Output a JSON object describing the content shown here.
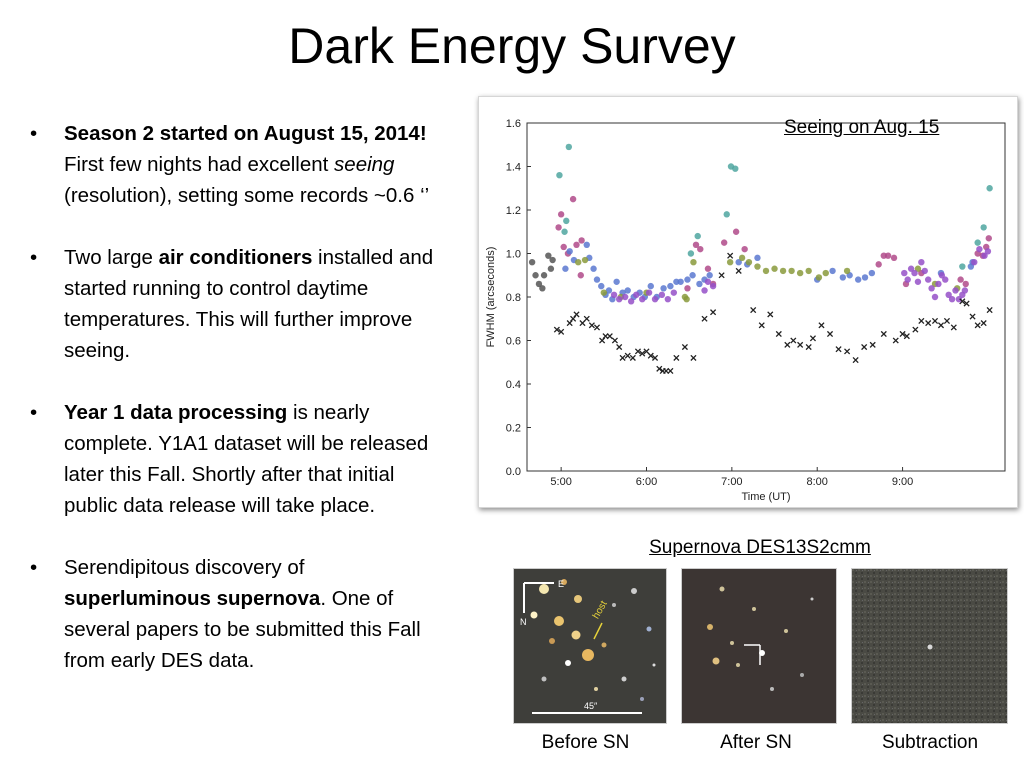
{
  "slide": {
    "title": "Dark Energy Survey",
    "bullets": [
      {
        "segments": [
          {
            "text": "Season 2 started on August 15, 2014!",
            "style": "bold"
          },
          {
            "text": "  First few nights had excellent ",
            "style": "normal"
          },
          {
            "text": "seeing",
            "style": "italic"
          },
          {
            "text": " (resolution), setting some records ~0.6 ‘’",
            "style": "normal"
          }
        ]
      },
      {
        "segments": [
          {
            "text": "Two large ",
            "style": "normal"
          },
          {
            "text": "air conditioners",
            "style": "bold"
          },
          {
            "text": " installed and started running to control daytime temperatures.  This will further improve seeing.",
            "style": "normal"
          }
        ]
      },
      {
        "segments": [
          {
            "text": "Year 1 data processing",
            "style": "bold"
          },
          {
            "text": " is nearly complete.  Y1A1 dataset will be released later this Fall.  Shortly after that initial public data release will take place.",
            "style": "normal"
          }
        ]
      },
      {
        "segments": [
          {
            "text": "Serendipitous discovery of ",
            "style": "normal"
          },
          {
            "text": "superluminous supernova",
            "style": "bold"
          },
          {
            "text": ".  One of several papers to be submitted this Fall from early DES data.",
            "style": "normal"
          }
        ]
      }
    ],
    "chart_caption": "Seeing on Aug. 15",
    "supernova_title": "Supernova DES13S2cmm",
    "panels": [
      {
        "caption": "Before SN",
        "labels": {
          "east": "E",
          "north": "N",
          "host": "host",
          "scale": "45″"
        }
      },
      {
        "caption": "After SN"
      },
      {
        "caption": "Subtraction"
      }
    ]
  },
  "chart_data": {
    "type": "scatter",
    "xlabel": "Time (UT)",
    "ylabel": "FWHM (arcseconds)",
    "xlim": [
      4.6,
      10.2
    ],
    "ylim": [
      0.0,
      1.6
    ],
    "xticks": [
      {
        "v": 5,
        "label": "5:00"
      },
      {
        "v": 6,
        "label": "6:00"
      },
      {
        "v": 7,
        "label": "7:00"
      },
      {
        "v": 8,
        "label": "8:00"
      },
      {
        "v": 9,
        "label": "9:00"
      }
    ],
    "yticks": [
      {
        "v": 0.0,
        "label": "0.0"
      },
      {
        "v": 0.2,
        "label": "0.2"
      },
      {
        "v": 0.4,
        "label": "0.4"
      },
      {
        "v": 0.6,
        "label": "0.6"
      },
      {
        "v": 0.8,
        "label": "0.8"
      },
      {
        "v": 1.0,
        "label": "1.0"
      },
      {
        "v": 1.2,
        "label": "1.2"
      },
      {
        "v": 1.4,
        "label": "1.4"
      },
      {
        "v": 1.6,
        "label": "1.6"
      }
    ],
    "series": [
      {
        "marker": "circle",
        "color": "#555555",
        "points": [
          [
            4.66,
            0.96
          ],
          [
            4.7,
            0.9
          ],
          [
            4.74,
            0.86
          ],
          [
            4.78,
            0.84
          ],
          [
            4.8,
            0.9
          ],
          [
            4.85,
            0.99
          ],
          [
            4.88,
            0.93
          ],
          [
            4.9,
            0.97
          ]
        ]
      },
      {
        "marker": "circle",
        "color": "#4fa6a0",
        "points": [
          [
            4.98,
            1.36
          ],
          [
            5.04,
            1.1
          ],
          [
            5.06,
            1.15
          ],
          [
            5.09,
            1.49
          ],
          [
            6.52,
            1.0
          ],
          [
            6.6,
            1.08
          ],
          [
            6.94,
            1.18
          ],
          [
            6.99,
            1.4
          ],
          [
            7.04,
            1.39
          ],
          [
            9.88,
            1.05
          ],
          [
            9.95,
            1.12
          ],
          [
            10.02,
            1.3
          ],
          [
            9.7,
            0.94
          ]
        ]
      },
      {
        "marker": "circle",
        "color": "#b04a8a",
        "points": [
          [
            4.97,
            1.12
          ],
          [
            5.0,
            1.18
          ],
          [
            5.03,
            1.03
          ],
          [
            5.08,
            1.0
          ],
          [
            5.14,
            1.25
          ],
          [
            5.18,
            1.04
          ],
          [
            5.23,
            0.9
          ],
          [
            5.24,
            1.06
          ],
          [
            6.48,
            0.84
          ],
          [
            6.58,
            1.04
          ],
          [
            6.63,
            1.02
          ],
          [
            6.72,
            0.93
          ],
          [
            6.78,
            0.86
          ],
          [
            6.91,
            1.05
          ],
          [
            7.05,
            1.1
          ],
          [
            7.15,
            1.02
          ],
          [
            8.72,
            0.95
          ],
          [
            8.78,
            0.99
          ],
          [
            8.83,
            0.99
          ],
          [
            8.9,
            0.98
          ],
          [
            9.04,
            0.86
          ],
          [
            9.22,
            0.91
          ],
          [
            9.68,
            0.88
          ],
          [
            9.74,
            0.86
          ],
          [
            9.88,
            1.0
          ],
          [
            9.94,
            0.99
          ],
          [
            9.98,
            1.03
          ],
          [
            10.01,
            1.07
          ]
        ]
      },
      {
        "marker": "circle",
        "color": "#5b78d0",
        "points": [
          [
            5.05,
            0.93
          ],
          [
            5.1,
            1.01
          ],
          [
            5.15,
            0.97
          ],
          [
            5.3,
            1.04
          ],
          [
            5.33,
            0.98
          ],
          [
            5.38,
            0.93
          ],
          [
            5.42,
            0.88
          ],
          [
            5.47,
            0.85
          ],
          [
            5.52,
            0.81
          ],
          [
            5.56,
            0.83
          ],
          [
            5.6,
            0.79
          ],
          [
            5.65,
            0.87
          ],
          [
            5.72,
            0.82
          ],
          [
            5.78,
            0.83
          ],
          [
            5.85,
            0.8
          ],
          [
            5.92,
            0.82
          ],
          [
            5.98,
            0.8
          ],
          [
            6.05,
            0.85
          ],
          [
            6.12,
            0.8
          ],
          [
            6.2,
            0.84
          ],
          [
            6.28,
            0.85
          ],
          [
            6.35,
            0.87
          ],
          [
            6.4,
            0.87
          ],
          [
            6.48,
            0.88
          ],
          [
            6.54,
            0.9
          ],
          [
            6.62,
            0.86
          ],
          [
            6.68,
            0.88
          ],
          [
            6.74,
            0.9
          ],
          [
            7.08,
            0.96
          ],
          [
            7.18,
            0.95
          ],
          [
            7.3,
            0.98
          ],
          [
            8.0,
            0.88
          ],
          [
            8.18,
            0.92
          ],
          [
            8.3,
            0.89
          ],
          [
            8.38,
            0.9
          ],
          [
            8.48,
            0.88
          ],
          [
            8.56,
            0.89
          ],
          [
            8.64,
            0.91
          ],
          [
            9.45,
            0.91
          ],
          [
            9.8,
            0.94
          ],
          [
            9.82,
            0.96
          ]
        ]
      },
      {
        "marker": "circle",
        "color": "#8a9a3c",
        "points": [
          [
            5.2,
            0.96
          ],
          [
            5.28,
            0.97
          ],
          [
            5.5,
            0.82
          ],
          [
            5.7,
            0.8
          ],
          [
            6.0,
            0.82
          ],
          [
            6.45,
            0.8
          ],
          [
            6.47,
            0.79
          ],
          [
            6.55,
            0.96
          ],
          [
            6.98,
            0.96
          ],
          [
            7.12,
            0.98
          ],
          [
            7.2,
            0.96
          ],
          [
            7.3,
            0.94
          ],
          [
            7.4,
            0.92
          ],
          [
            7.5,
            0.93
          ],
          [
            7.6,
            0.92
          ],
          [
            7.7,
            0.92
          ],
          [
            7.8,
            0.91
          ],
          [
            7.9,
            0.92
          ],
          [
            8.02,
            0.89
          ],
          [
            8.1,
            0.91
          ],
          [
            8.35,
            0.92
          ],
          [
            9.18,
            0.93
          ],
          [
            9.38,
            0.86
          ],
          [
            9.64,
            0.84
          ]
        ]
      },
      {
        "marker": "circle",
        "color": "#9550c8",
        "points": [
          [
            5.62,
            0.81
          ],
          [
            5.68,
            0.79
          ],
          [
            5.75,
            0.8
          ],
          [
            5.82,
            0.78
          ],
          [
            5.88,
            0.81
          ],
          [
            5.95,
            0.79
          ],
          [
            6.03,
            0.82
          ],
          [
            6.1,
            0.79
          ],
          [
            6.18,
            0.81
          ],
          [
            6.25,
            0.79
          ],
          [
            6.32,
            0.82
          ],
          [
            6.68,
            0.83
          ],
          [
            6.72,
            0.87
          ],
          [
            6.78,
            0.85
          ],
          [
            9.02,
            0.91
          ],
          [
            9.06,
            0.88
          ],
          [
            9.1,
            0.93
          ],
          [
            9.14,
            0.91
          ],
          [
            9.18,
            0.87
          ],
          [
            9.22,
            0.96
          ],
          [
            9.26,
            0.92
          ],
          [
            9.3,
            0.88
          ],
          [
            9.34,
            0.84
          ],
          [
            9.38,
            0.8
          ],
          [
            9.42,
            0.86
          ],
          [
            9.46,
            0.9
          ],
          [
            9.5,
            0.88
          ],
          [
            9.54,
            0.81
          ],
          [
            9.58,
            0.79
          ],
          [
            9.62,
            0.83
          ],
          [
            9.66,
            0.79
          ],
          [
            9.7,
            0.81
          ],
          [
            9.73,
            0.83
          ],
          [
            9.84,
            0.96
          ],
          [
            9.9,
            1.02
          ],
          [
            9.96,
            0.99
          ],
          [
            10.0,
            1.01
          ]
        ]
      },
      {
        "marker": "x",
        "color": "#222222",
        "points": [
          [
            4.95,
            0.65
          ],
          [
            5.0,
            0.64
          ],
          [
            5.1,
            0.68
          ],
          [
            5.14,
            0.7
          ],
          [
            5.18,
            0.72
          ],
          [
            5.25,
            0.68
          ],
          [
            5.3,
            0.7
          ],
          [
            5.36,
            0.67
          ],
          [
            5.42,
            0.66
          ],
          [
            5.48,
            0.6
          ],
          [
            5.52,
            0.62
          ],
          [
            5.57,
            0.62
          ],
          [
            5.63,
            0.6
          ],
          [
            5.68,
            0.57
          ],
          [
            5.72,
            0.52
          ],
          [
            5.78,
            0.53
          ],
          [
            5.84,
            0.52
          ],
          [
            5.9,
            0.55
          ],
          [
            5.95,
            0.54
          ],
          [
            6.0,
            0.55
          ],
          [
            6.05,
            0.53
          ],
          [
            6.1,
            0.52
          ],
          [
            6.15,
            0.47
          ],
          [
            6.19,
            0.46
          ],
          [
            6.23,
            0.46
          ],
          [
            6.28,
            0.46
          ],
          [
            6.35,
            0.52
          ],
          [
            6.45,
            0.57
          ],
          [
            6.55,
            0.52
          ],
          [
            6.68,
            0.7
          ],
          [
            6.78,
            0.73
          ],
          [
            6.88,
            0.9
          ],
          [
            6.98,
            0.99
          ],
          [
            7.08,
            0.92
          ],
          [
            7.25,
            0.74
          ],
          [
            7.35,
            0.67
          ],
          [
            7.45,
            0.72
          ],
          [
            7.55,
            0.63
          ],
          [
            7.65,
            0.58
          ],
          [
            7.72,
            0.6
          ],
          [
            7.8,
            0.58
          ],
          [
            7.9,
            0.57
          ],
          [
            7.95,
            0.61
          ],
          [
            8.05,
            0.67
          ],
          [
            8.15,
            0.63
          ],
          [
            8.25,
            0.56
          ],
          [
            8.35,
            0.55
          ],
          [
            8.45,
            0.51
          ],
          [
            8.55,
            0.57
          ],
          [
            8.65,
            0.58
          ],
          [
            8.78,
            0.63
          ],
          [
            8.92,
            0.6
          ],
          [
            9.0,
            0.63
          ],
          [
            9.05,
            0.62
          ],
          [
            9.15,
            0.65
          ],
          [
            9.22,
            0.69
          ],
          [
            9.3,
            0.68
          ],
          [
            9.38,
            0.69
          ],
          [
            9.45,
            0.67
          ],
          [
            9.52,
            0.69
          ],
          [
            9.6,
            0.66
          ],
          [
            9.7,
            0.78
          ],
          [
            9.75,
            0.77
          ],
          [
            9.82,
            0.71
          ],
          [
            9.88,
            0.67
          ],
          [
            9.95,
            0.68
          ],
          [
            10.02,
            0.74
          ]
        ]
      }
    ]
  }
}
